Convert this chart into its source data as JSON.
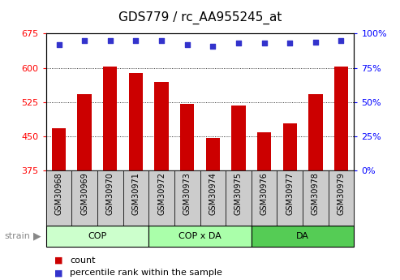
{
  "title": "GDS779 / rc_AA955245_at",
  "categories": [
    "GSM30968",
    "GSM30969",
    "GSM30970",
    "GSM30971",
    "GSM30972",
    "GSM30973",
    "GSM30974",
    "GSM30975",
    "GSM30976",
    "GSM30977",
    "GSM30978",
    "GSM30979"
  ],
  "bar_values": [
    468,
    543,
    603,
    588,
    570,
    522,
    447,
    517,
    460,
    478,
    543,
    603
  ],
  "percentile_values": [
    92,
    95,
    95,
    95,
    95,
    92,
    91,
    93,
    93,
    93,
    94,
    95
  ],
  "ylim_left": [
    375,
    675
  ],
  "ylim_right": [
    0,
    100
  ],
  "yticks_left": [
    375,
    450,
    525,
    600,
    675
  ],
  "yticks_right": [
    0,
    25,
    50,
    75,
    100
  ],
  "bar_color": "#cc0000",
  "dot_color": "#3333cc",
  "grid_color": "#000000",
  "bg_gray": "#cccccc",
  "groups": [
    {
      "label": "COP",
      "start": 0,
      "end": 3,
      "color": "#ccffcc"
    },
    {
      "label": "COP x DA",
      "start": 4,
      "end": 7,
      "color": "#aaffaa"
    },
    {
      "label": "DA",
      "start": 8,
      "end": 11,
      "color": "#55cc55"
    }
  ],
  "strain_label": "strain",
  "legend_count_label": "count",
  "legend_pct_label": "percentile rank within the sample",
  "title_fontsize": 11,
  "tick_fontsize": 8,
  "bar_width": 0.55
}
